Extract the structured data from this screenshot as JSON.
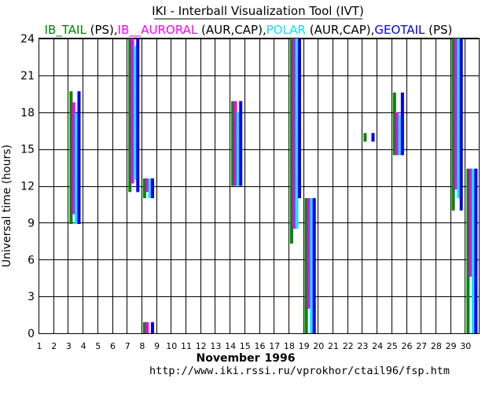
{
  "chart_data": {
    "type": "bar",
    "title": "IKI - Interball Visualization Tool (IVT)",
    "legend": [
      {
        "name": "IB_TAIL",
        "suffix": " (PS),",
        "color": "#008000"
      },
      {
        "name": "IB__AURORAL",
        "suffix": " (AUR,CAP),",
        "color": "#ff00ff"
      },
      {
        "name": "POLAR",
        "suffix": " (AUR,CAP),",
        "color": "#00e5ff"
      },
      {
        "name": "GEOTAIL",
        "suffix": " (PS)",
        "color": "#0000ff"
      }
    ],
    "ylabel": "Universal time (hours)",
    "xlabel_month": "November",
    "xlabel_year": "1996",
    "url": "http://www.iki.rssi.ru/vprokhor/ctail96/fsp.htm",
    "xlim": [
      1,
      31
    ],
    "ylim": [
      0,
      24
    ],
    "x_ticks": [
      1,
      2,
      3,
      4,
      5,
      6,
      7,
      8,
      9,
      10,
      11,
      12,
      13,
      14,
      15,
      16,
      17,
      18,
      19,
      20,
      21,
      22,
      23,
      24,
      25,
      26,
      27,
      28,
      29,
      30
    ],
    "y_ticks": [
      0,
      3,
      6,
      9,
      12,
      15,
      18,
      21,
      24
    ],
    "grid": true,
    "series": [
      {
        "name": "IB_TAIL",
        "color": "#008000",
        "dash": "#00b000",
        "offset": 0.0,
        "intervals": [
          {
            "day": 3,
            "start": 8.9,
            "end": 19.7
          },
          {
            "day": 7,
            "start": 11.5,
            "end": 24.0
          },
          {
            "day": 8,
            "start": 11.0,
            "end": 12.6
          },
          {
            "day": 8,
            "start": 0.0,
            "end": 0.9
          },
          {
            "day": 14,
            "start": 12.0,
            "end": 18.9
          },
          {
            "day": 18,
            "start": 7.3,
            "end": 24.0
          },
          {
            "day": 19,
            "start": 0.0,
            "end": 11.0
          },
          {
            "day": 23,
            "start": 15.6,
            "end": 16.3
          },
          {
            "day": 25,
            "start": 14.5,
            "end": 19.6
          },
          {
            "day": 29,
            "start": 10.0,
            "end": 24.0
          },
          {
            "day": 30,
            "start": 0.0,
            "end": 13.4
          }
        ]
      },
      {
        "name": "IB__AURORAL",
        "color": "#ff00ff",
        "dash": "#b000b0",
        "offset": 0.3,
        "intervals": [
          {
            "day": 3,
            "start": 9.7,
            "end": 18.8
          },
          {
            "day": 7,
            "start": 12.2,
            "end": 24.0
          },
          {
            "day": 8,
            "start": 11.5,
            "end": 12.6
          },
          {
            "day": 8,
            "start": 0.0,
            "end": 0.9
          },
          {
            "day": 14,
            "start": 12.0,
            "end": 18.9
          },
          {
            "day": 18,
            "start": 8.5,
            "end": 24.0
          },
          {
            "day": 19,
            "start": 2.0,
            "end": 11.0
          },
          {
            "day": 25,
            "start": 14.5,
            "end": 18.0
          },
          {
            "day": 29,
            "start": 11.7,
            "end": 24.0
          },
          {
            "day": 30,
            "start": 4.6,
            "end": 13.4
          }
        ]
      },
      {
        "name": "POLAR",
        "color": "#00e5ff",
        "dash": "#80f2ff",
        "offset": 0.6,
        "intervals": [
          {
            "day": 3,
            "start": 8.9,
            "end": 17.9
          },
          {
            "day": 7,
            "start": 12.5,
            "end": 23.4
          },
          {
            "day": 8,
            "start": 11.0,
            "end": 12.6
          },
          {
            "day": 14,
            "start": 12.0,
            "end": 18.0
          },
          {
            "day": 18,
            "start": 8.5,
            "end": 24.0
          },
          {
            "day": 19,
            "start": 0.0,
            "end": 11.0
          },
          {
            "day": 25,
            "start": 14.5,
            "end": 17.8
          },
          {
            "day": 29,
            "start": 11.0,
            "end": 24.0
          },
          {
            "day": 30,
            "start": 0.0,
            "end": 13.4
          }
        ]
      },
      {
        "name": "GEOTAIL",
        "color": "#0000ff",
        "dash": "#0000a0",
        "offset": 0.9,
        "intervals": [
          {
            "day": 3,
            "start": 8.9,
            "end": 19.7
          },
          {
            "day": 7,
            "start": 11.5,
            "end": 24.0
          },
          {
            "day": 8,
            "start": 11.0,
            "end": 12.6
          },
          {
            "day": 8,
            "start": 0.0,
            "end": 0.9
          },
          {
            "day": 14,
            "start": 12.0,
            "end": 18.9
          },
          {
            "day": 18,
            "start": 11.0,
            "end": 24.0
          },
          {
            "day": 19,
            "start": 0.0,
            "end": 11.0
          },
          {
            "day": 23,
            "start": 15.6,
            "end": 16.3
          },
          {
            "day": 25,
            "start": 14.5,
            "end": 19.6
          },
          {
            "day": 29,
            "start": 10.0,
            "end": 24.0
          },
          {
            "day": 30,
            "start": 0.0,
            "end": 13.4
          }
        ]
      }
    ]
  }
}
